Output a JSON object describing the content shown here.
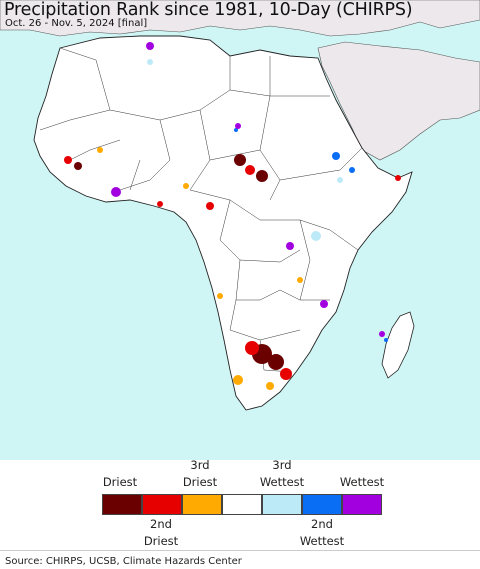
{
  "title": "Precipitation Rank since 1981, 10-Day (CHIRPS)",
  "subtitle": "Oct. 26 - Nov. 5, 2024 [final]",
  "legend": {
    "top_labels": [
      "Driest",
      "3rd\nDriest",
      "3rd\nWettest",
      "Wettest"
    ],
    "bottom_labels": [
      "2nd\nDriest",
      "2nd\nWettest"
    ],
    "colors": [
      "#6b0000",
      "#e60000",
      "#ffaa00",
      "#ffffff",
      "#bdeaf7",
      "#0a6ef5",
      "#a300e0"
    ]
  },
  "colors": {
    "ocean": "#cff5f5",
    "land": "#ffffff",
    "other_land": "#ece8ec",
    "border": "#333333"
  },
  "source": "Source: CHIRPS, UCSB, Climate Hazards Center"
}
